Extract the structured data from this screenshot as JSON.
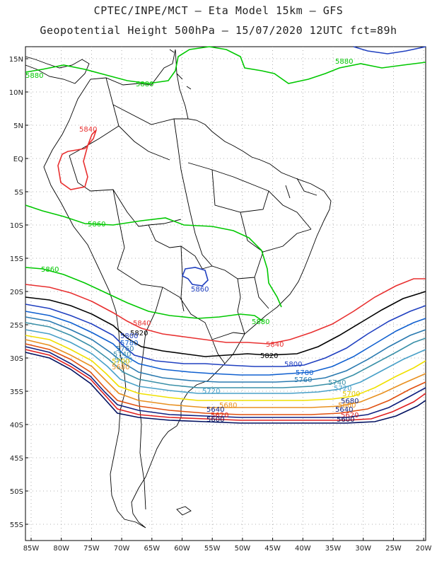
{
  "title_line1": "CPTEC/INPE/MCT –  Eta Model 15km – GFS",
  "title_line2": "Geopotential Height 500hPa – 15/07/2020 12UTC fct=89h",
  "lat_labels": [
    "15N",
    "10N",
    "5N",
    "EQ",
    "5S",
    "10S",
    "15S",
    "20S",
    "25S",
    "30S",
    "35S",
    "40S",
    "45S",
    "50S",
    "55S"
  ],
  "lon_labels": [
    "85W",
    "80W",
    "75W",
    "70W",
    "65W",
    "60W",
    "55W",
    "50W",
    "45W",
    "40W",
    "35W",
    "30W",
    "25W",
    "20W"
  ],
  "colors": {
    "c5880": "#00c800",
    "c5860": "#00c800",
    "c5840": "#e83030",
    "c5820": "#000000",
    "c5800": "#2040c0",
    "c5780": "#1060d0",
    "c5760": "#2a7ab0",
    "c5740": "#3a90a8",
    "c5720": "#48a0c8",
    "c5700": "#f0e000",
    "c5680": "#e89020",
    "c5660": "#e05010",
    "c5640": "#102080",
    "c5620": "#e02020",
    "c5600": "#001060",
    "coast": "#000000",
    "grid": "#9a9a9a"
  },
  "contour_labels": {
    "l5880_a": "5880",
    "l5880_b": "5880",
    "l5880_c": "5880",
    "l5860_a": "5860",
    "l5860_b": "5860",
    "l5860_c": "5860",
    "l5840_a": "5840",
    "l5840_b": "5840",
    "l5840_c": "5840",
    "l5820_a": "5820",
    "l5820_b": "5820",
    "l5800_a": "5800",
    "l5800_b": "5800",
    "l5780_a": "5780",
    "l5780_b": "5780",
    "l5760_a": "5760",
    "l5760_b": "5760",
    "l5740_a": "5740",
    "l5740_b": "5740",
    "l5720_a": "5720",
    "l5720_b": "5720",
    "l5720_c": "5720",
    "l5700_a": "5700",
    "l5700_b": "5700",
    "l5680_a": "5680",
    "l5680_b": "5680",
    "l5680_c": "5680",
    "l5660_a": "5660",
    "l5640_a": "5640",
    "l5640_b": "5640",
    "l5620_a": "5620",
    "l5620_b": "5620",
    "l5600_a": "5600",
    "l5600_b": "5600"
  }
}
